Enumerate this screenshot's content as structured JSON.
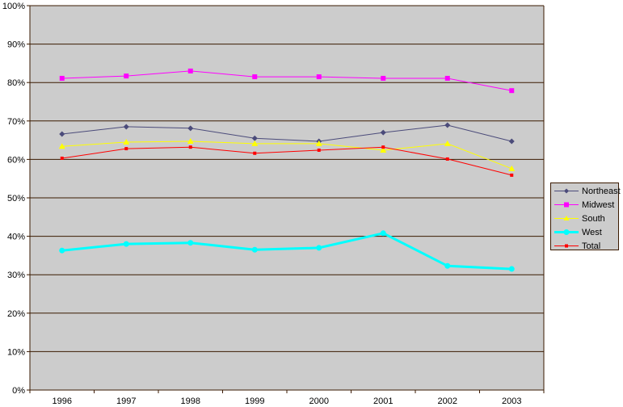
{
  "chart_data": {
    "type": "line",
    "title": "",
    "xlabel": "",
    "ylabel": "",
    "categories": [
      "1996",
      "1997",
      "1998",
      "1999",
      "2000",
      "2001",
      "2002",
      "2003"
    ],
    "ylim": [
      0,
      100
    ],
    "yticks": [
      "0%",
      "10%",
      "20%",
      "30%",
      "40%",
      "50%",
      "60%",
      "70%",
      "80%",
      "90%",
      "100%"
    ],
    "grid": true,
    "legend_position": "right",
    "plot_background": "#cccccc",
    "gridline_color": "#3a1a00",
    "series": [
      {
        "name": "Northeast",
        "color": "#4b4b7a",
        "marker": "diamond",
        "width": 1,
        "values": [
          66.6,
          68.5,
          68.1,
          65.5,
          64.7,
          67.0,
          68.9,
          64.7
        ]
      },
      {
        "name": "Midwest",
        "color": "#ff00ff",
        "marker": "square",
        "width": 1,
        "values": [
          81.1,
          81.7,
          83.0,
          81.5,
          81.5,
          81.1,
          81.1,
          77.9
        ]
      },
      {
        "name": "South",
        "color": "#ffff00",
        "marker": "triangle",
        "width": 1,
        "values": [
          63.4,
          64.5,
          64.7,
          64.1,
          64.1,
          62.4,
          64.1,
          57.6
        ]
      },
      {
        "name": "West",
        "color": "#00ffff",
        "marker": "circle",
        "width": 3,
        "values": [
          36.3,
          38.0,
          38.3,
          36.5,
          37.0,
          40.8,
          32.3,
          31.5
        ]
      },
      {
        "name": "Total",
        "color": "#ff0000",
        "marker": "square-small",
        "width": 1,
        "values": [
          60.3,
          62.8,
          63.2,
          61.6,
          62.4,
          63.2,
          60.1,
          55.9
        ]
      }
    ]
  },
  "legend": {
    "items": [
      {
        "label": "Northeast"
      },
      {
        "label": "Midwest"
      },
      {
        "label": "South"
      },
      {
        "label": "West"
      },
      {
        "label": "Total"
      }
    ]
  }
}
